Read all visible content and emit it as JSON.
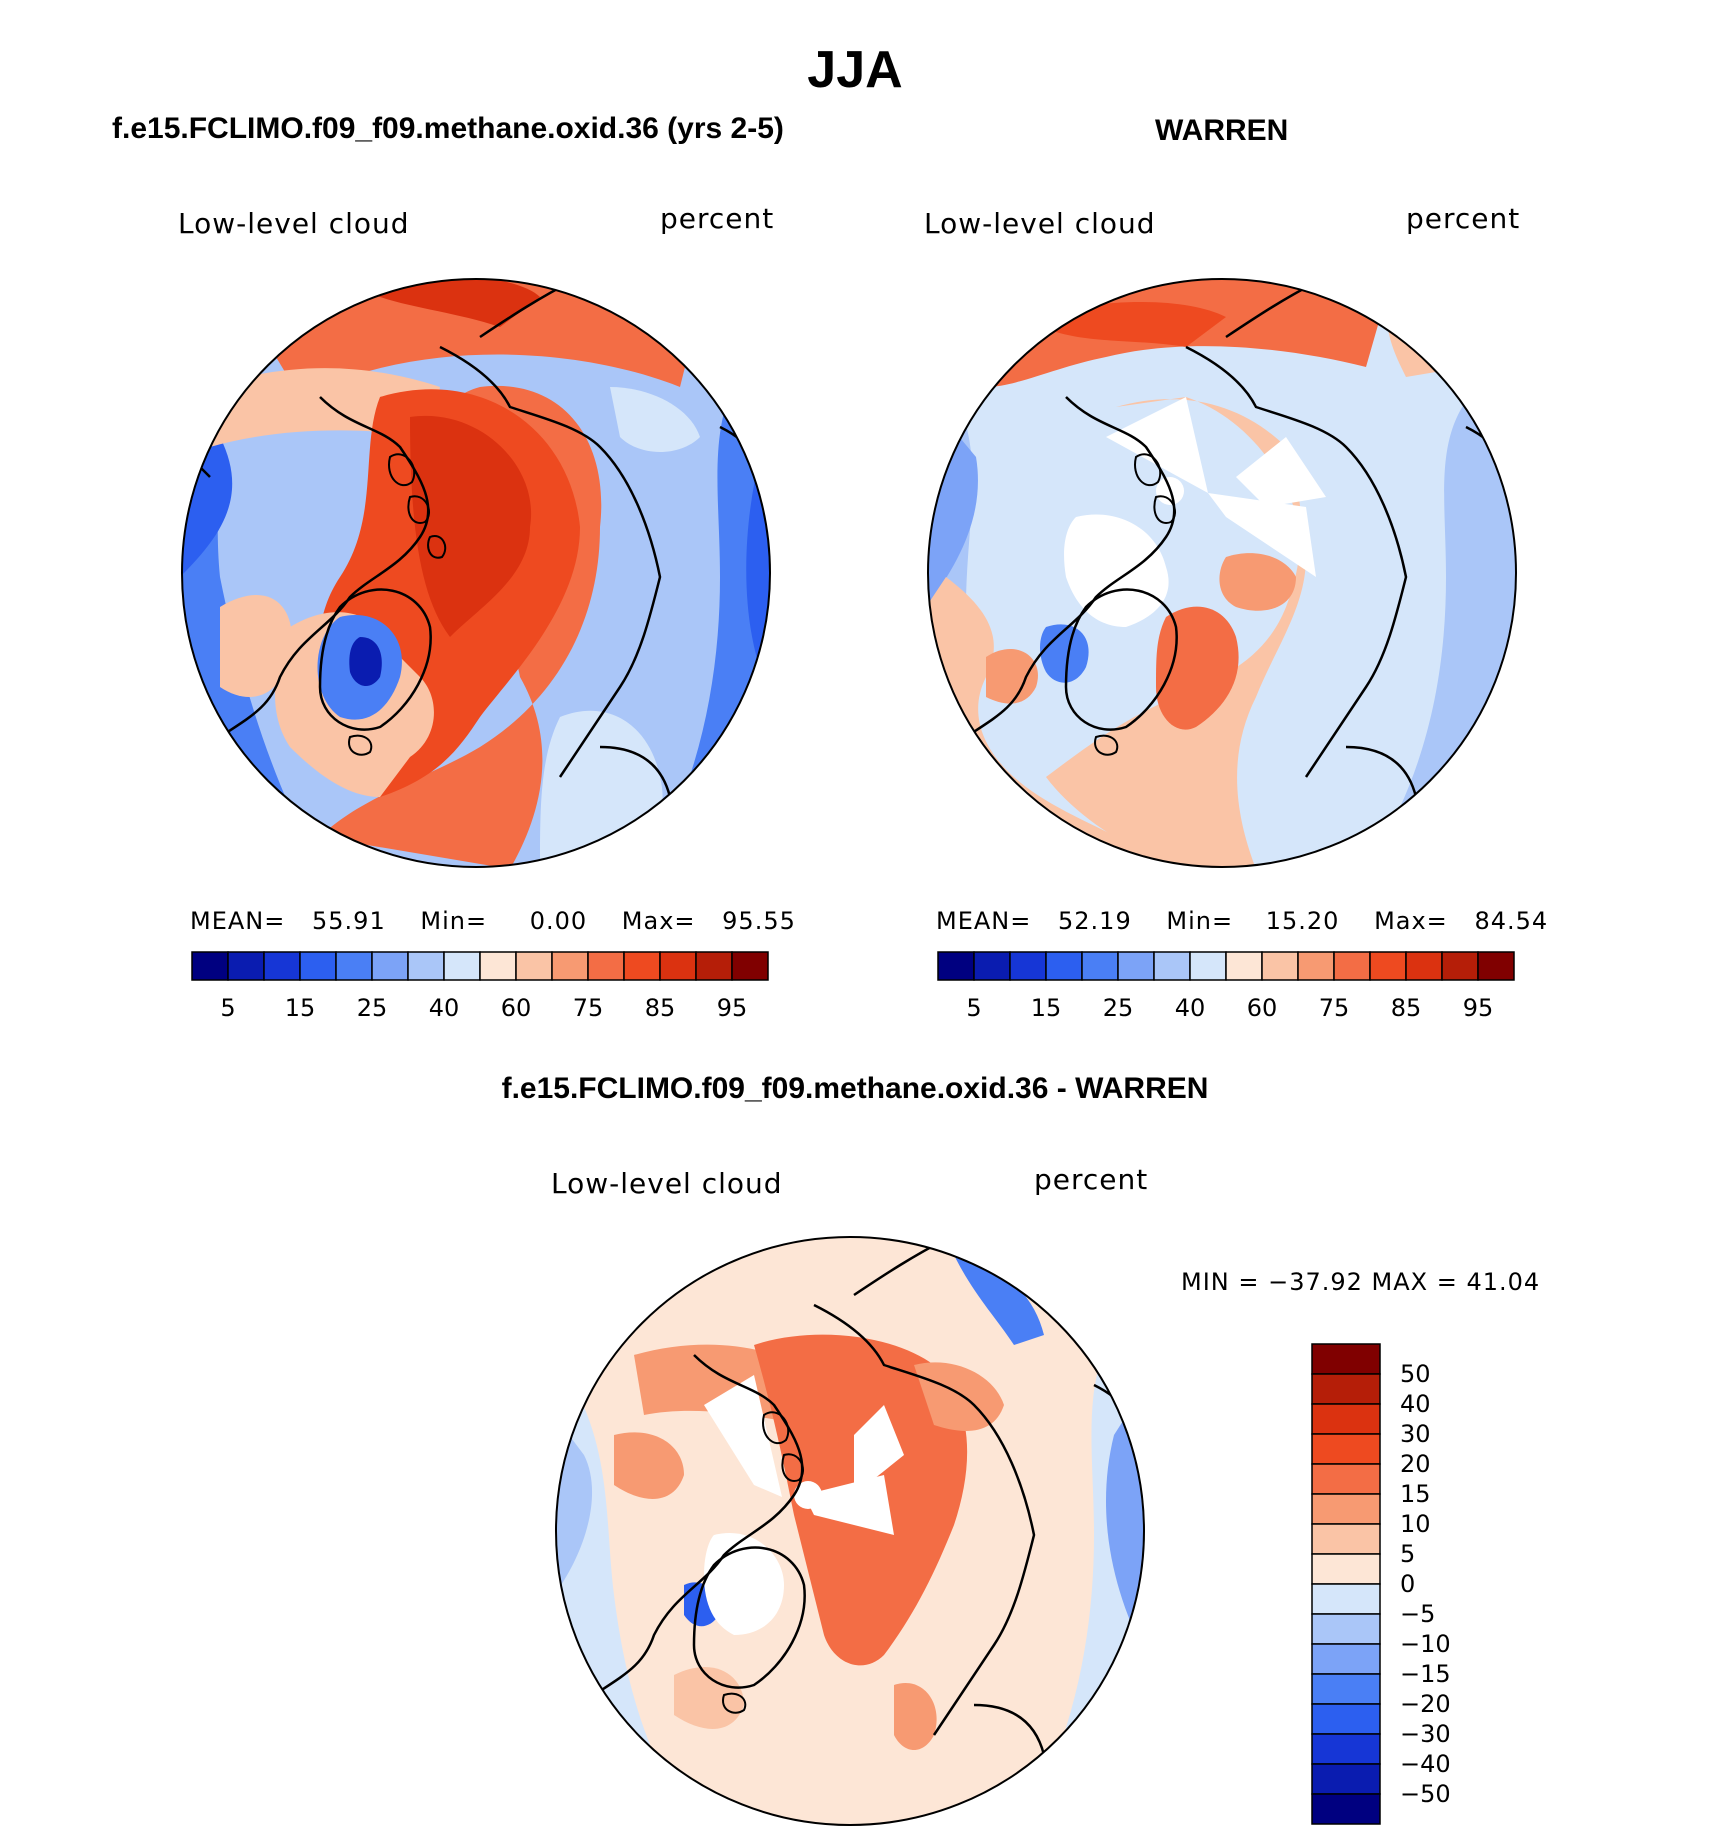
{
  "page_title": "JJA",
  "panels": [
    {
      "case_title": "f.e15.FCLIMO.f09_f09.methane.oxid.36 (yrs 2-5)",
      "variable": "Low-level cloud",
      "units": "percent",
      "stats": {
        "mean_label": "MEAN=",
        "mean": "55.91",
        "min_label": "Min=",
        "min": "0.00",
        "max_label": "Max=",
        "max": "95.55"
      }
    },
    {
      "case_title": "WARREN",
      "variable": "Low-level cloud",
      "units": "percent",
      "stats": {
        "mean_label": "MEAN=",
        "mean": "52.19",
        "min_label": "Min=",
        "min": "15.20",
        "max_label": "Max=",
        "max": "84.54"
      }
    }
  ],
  "difference": {
    "title": "f.e15.FCLIMO.f09_f09.methane.oxid.36 - WARREN",
    "variable": "Low-level cloud",
    "units": "percent",
    "minmax": "MIN = −37.92 MAX =   41.04"
  },
  "colorbar_abs": {
    "colors": [
      "#000080",
      "#0a1cb0",
      "#1636d6",
      "#2c5ff0",
      "#4a7ff5",
      "#7ca3f7",
      "#aac6f8",
      "#d5e6fa",
      "#fde6d6",
      "#fac4a6",
      "#f79a72",
      "#f36d45",
      "#ee4a20",
      "#db3210",
      "#b51e08",
      "#800000"
    ],
    "labels": [
      "5",
      "15",
      "25",
      "40",
      "60",
      "75",
      "85",
      "95"
    ]
  },
  "colorbar_diff": {
    "colors": [
      "#800000",
      "#b51e08",
      "#db3210",
      "#ee4a20",
      "#f36d45",
      "#f79a72",
      "#fac4a6",
      "#fde6d6",
      "#d5e6fa",
      "#aac6f8",
      "#7ca3f7",
      "#4a7ff5",
      "#2c5ff0",
      "#1636d6",
      "#0a1cb0",
      "#000080"
    ],
    "labels": [
      "50",
      "40",
      "30",
      "20",
      "15",
      "10",
      "5",
      "0",
      "−5",
      "−10",
      "−15",
      "−20",
      "−30",
      "−40",
      "−50"
    ]
  }
}
